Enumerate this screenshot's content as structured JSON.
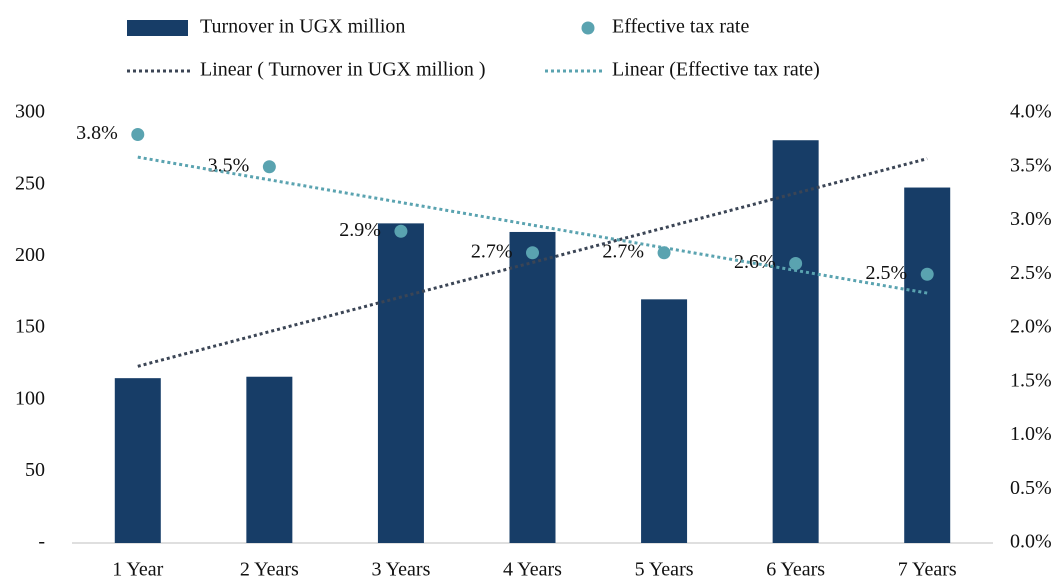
{
  "chart_data": {
    "type": "bar_dot",
    "categories": [
      "1 Year",
      "2 Years",
      "3 Years",
      "4 Years",
      "5 Years",
      "6 Years",
      "7 Years"
    ],
    "series": [
      {
        "name": "Turnover in UGX million",
        "color": "#173d67",
        "type": "bar",
        "values": [
          115,
          116,
          223,
          217,
          170,
          281,
          248
        ]
      },
      {
        "name": "Effective tax rate",
        "color": "#5aa3b0",
        "type": "dot",
        "axis": "y2",
        "values": [
          3.8,
          3.5,
          2.9,
          2.7,
          2.7,
          2.6,
          2.5
        ],
        "value_labels": [
          "3.8%",
          "3.5%",
          "2.9%",
          "2.7%",
          "2.7%",
          "2.6%",
          "2.5%"
        ]
      },
      {
        "name": "Linear ( Turnover in UGX million )",
        "color": "#3b4555",
        "type": "trendline",
        "trendline_of": 0
      },
      {
        "name": "Linear (Effective tax rate)",
        "color": "#5aa3b0",
        "type": "trendline",
        "trendline_of": 1
      }
    ],
    "ylim": [
      0,
      300
    ],
    "yticks": [
      {
        "value": 0,
        "label": "-"
      },
      50,
      100,
      150,
      200,
      250,
      300
    ],
    "y2lim": [
      0,
      4
    ],
    "y2ticks": [
      {
        "value": 0,
        "label": "0.0%"
      },
      {
        "value": 0.5,
        "label": "0.5%"
      },
      {
        "value": 1,
        "label": "1.0%"
      },
      {
        "value": 1.5,
        "label": "1.5%"
      },
      {
        "value": 2,
        "label": "2.0%"
      },
      {
        "value": 2.5,
        "label": "2.5%"
      },
      {
        "value": 3,
        "label": "3.0%"
      },
      {
        "value": 3.5,
        "label": "3.5%"
      },
      {
        "value": 4,
        "label": "4.0%"
      }
    ]
  }
}
